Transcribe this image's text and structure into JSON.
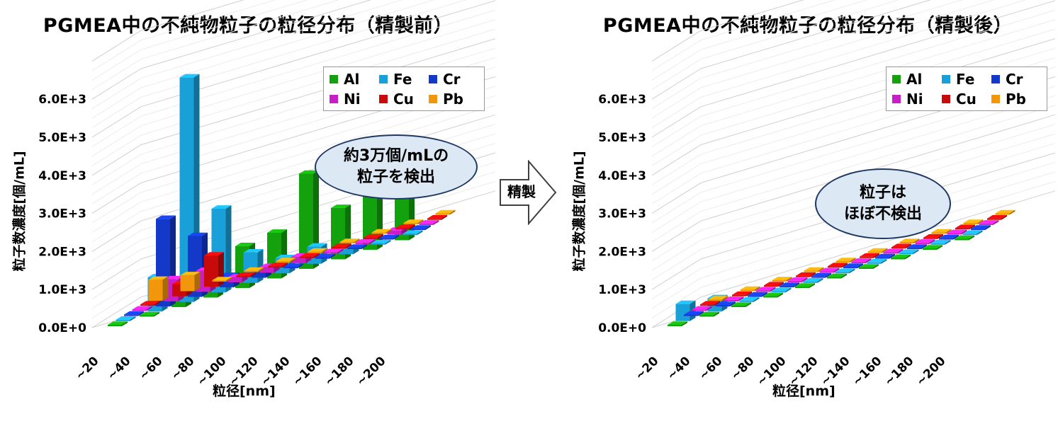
{
  "colors": {
    "Al": "#13a10e",
    "Fe": "#1aa0d8",
    "Cr": "#1438c8",
    "Ni": "#c81ec8",
    "Cu": "#c80a0a",
    "Pb": "#f2960c"
  },
  "arrow": {
    "label": "精製"
  },
  "chart_data": [
    {
      "type": "bar",
      "title": "PGMEA中の不純物粒子の粒径分布（精製前）",
      "xlabel": "粒径[nm]",
      "ylabel": "粒子数濃度[個/mL]",
      "ylim": [
        0,
        6000
      ],
      "yticks": [
        "0.0E+0",
        "1.0E+3",
        "2.0E+3",
        "3.0E+3",
        "4.0E+3",
        "5.0E+3",
        "6.0E+3"
      ],
      "categories": [
        "~20",
        "~40",
        "~60",
        "~80",
        "~100",
        "~120",
        "~140",
        "~160",
        "~180",
        "~200"
      ],
      "series": [
        {
          "name": "Al",
          "values": [
            0,
            0,
            250,
            800,
            1100,
            1200,
            2500,
            1350,
            1650,
            1100
          ]
        },
        {
          "name": "Fe",
          "values": [
            0,
            900,
            5900,
            2200,
            800,
            400,
            450,
            150,
            0,
            0
          ]
        },
        {
          "name": "Cr",
          "values": [
            0,
            2300,
            1600,
            300,
            200,
            0,
            0,
            0,
            0,
            0
          ]
        },
        {
          "name": "Ni",
          "values": [
            0,
            580,
            550,
            130,
            150,
            170,
            0,
            0,
            100,
            0
          ]
        },
        {
          "name": "Cu",
          "values": [
            0,
            320,
            820,
            0,
            0,
            0,
            0,
            0,
            0,
            0
          ]
        },
        {
          "name": "Pb",
          "values": [
            550,
            420,
            0,
            0,
            0,
            0,
            0,
            0,
            0,
            0
          ]
        }
      ],
      "legend": "top-right",
      "annotation": [
        "約3万個/mLの",
        "粒子を検出"
      ]
    },
    {
      "type": "bar",
      "title": "PGMEA中の不純物粒子の粒径分布（精製後）",
      "xlabel": "粒径[nm]",
      "ylabel": "粒子数濃度[個/mL]",
      "ylim": [
        0,
        6000
      ],
      "yticks": [
        "0.0E+0",
        "1.0E+3",
        "2.0E+3",
        "3.0E+3",
        "4.0E+3",
        "5.0E+3",
        "6.0E+3"
      ],
      "categories": [
        "~20",
        "~40",
        "~60",
        "~80",
        "~100",
        "~120",
        "~140",
        "~160",
        "~180",
        "~200"
      ],
      "series": [
        {
          "name": "Al",
          "values": [
            0,
            0,
            0,
            0,
            0,
            0,
            0,
            0,
            0,
            0
          ]
        },
        {
          "name": "Fe",
          "values": [
            450,
            350,
            0,
            0,
            0,
            0,
            0,
            0,
            0,
            0
          ]
        },
        {
          "name": "Cr",
          "values": [
            0,
            0,
            0,
            0,
            0,
            0,
            0,
            0,
            0,
            0
          ]
        },
        {
          "name": "Ni",
          "values": [
            0,
            0,
            0,
            0,
            0,
            0,
            0,
            0,
            0,
            0
          ]
        },
        {
          "name": "Cu",
          "values": [
            0,
            0,
            0,
            0,
            0,
            0,
            0,
            0,
            0,
            0
          ]
        },
        {
          "name": "Pb",
          "values": [
            0,
            0,
            0,
            0,
            0,
            0,
            0,
            0,
            0,
            0
          ]
        }
      ],
      "legend": "top-right",
      "annotation": [
        "粒子は",
        "ほぼ不検出"
      ]
    }
  ]
}
